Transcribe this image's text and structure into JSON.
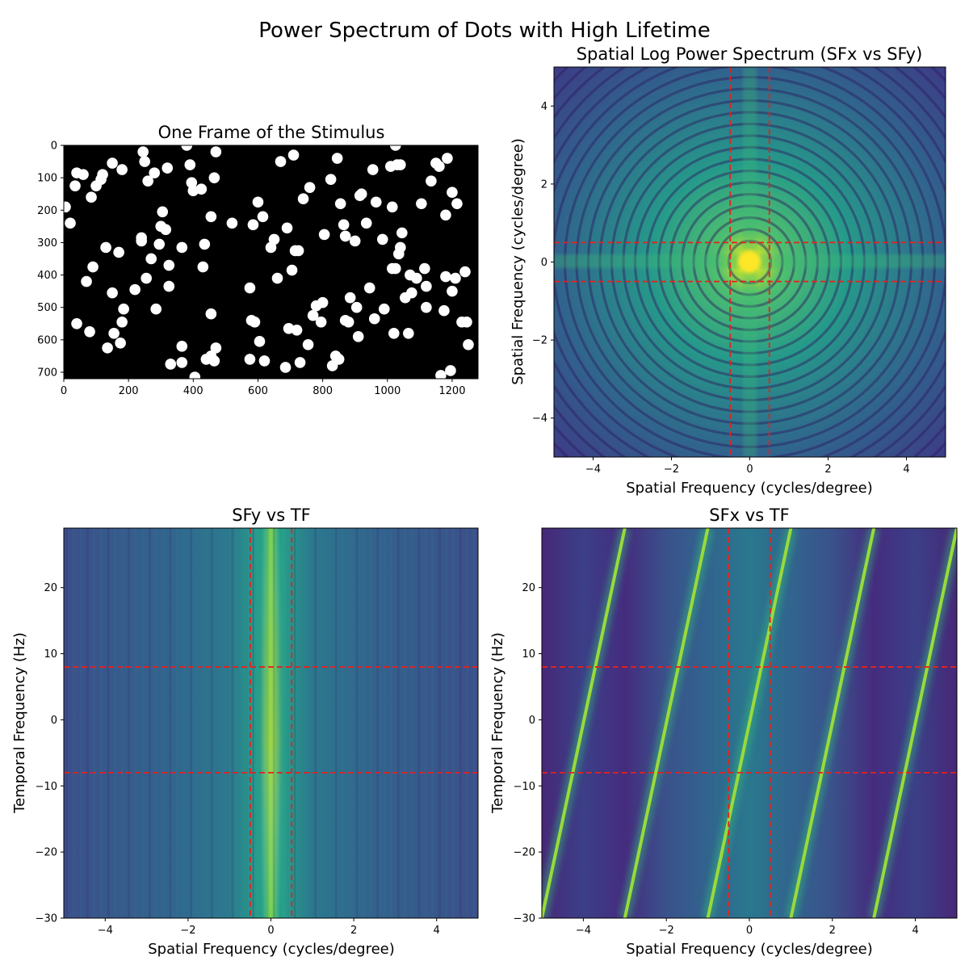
{
  "figure": {
    "title": "Power Spectrum of Dots with High Lifetime"
  },
  "chart_data": [
    {
      "type": "scatter",
      "title": "One Frame of the Stimulus",
      "xlabel": "",
      "ylabel": "",
      "xlim": [
        0,
        1280
      ],
      "ylim": [
        720,
        0
      ],
      "xticks": [
        0,
        200,
        400,
        600,
        800,
        1000,
        1200
      ],
      "yticks": [
        0,
        100,
        200,
        300,
        400,
        500,
        600,
        700
      ],
      "background": "#000000",
      "dot_color": "#ffffff",
      "points": [
        [
          5,
          190
        ],
        [
          20,
          240
        ],
        [
          35,
          125
        ],
        [
          40,
          85
        ],
        [
          40,
          550
        ],
        [
          60,
          90
        ],
        [
          70,
          420
        ],
        [
          80,
          575
        ],
        [
          85,
          160
        ],
        [
          90,
          375
        ],
        [
          100,
          125
        ],
        [
          115,
          105
        ],
        [
          120,
          90
        ],
        [
          130,
          315
        ],
        [
          135,
          625
        ],
        [
          150,
          55
        ],
        [
          150,
          455
        ],
        [
          155,
          580
        ],
        [
          170,
          330
        ],
        [
          175,
          610
        ],
        [
          180,
          75
        ],
        [
          180,
          545
        ],
        [
          185,
          505
        ],
        [
          220,
          445
        ],
        [
          240,
          295
        ],
        [
          240,
          285
        ],
        [
          245,
          20
        ],
        [
          250,
          50
        ],
        [
          255,
          410
        ],
        [
          260,
          110
        ],
        [
          270,
          350
        ],
        [
          280,
          85
        ],
        [
          285,
          505
        ],
        [
          295,
          305
        ],
        [
          300,
          250
        ],
        [
          305,
          205
        ],
        [
          315,
          260
        ],
        [
          320,
          70
        ],
        [
          325,
          435
        ],
        [
          325,
          370
        ],
        [
          330,
          675
        ],
        [
          365,
          315
        ],
        [
          365,
          620
        ],
        [
          365,
          670
        ],
        [
          380,
          0
        ],
        [
          390,
          60
        ],
        [
          395,
          115
        ],
        [
          400,
          140
        ],
        [
          405,
          715
        ],
        [
          425,
          135
        ],
        [
          430,
          375
        ],
        [
          435,
          305
        ],
        [
          440,
          660
        ],
        [
          455,
          520
        ],
        [
          455,
          650
        ],
        [
          455,
          220
        ],
        [
          465,
          100
        ],
        [
          465,
          665
        ],
        [
          470,
          20
        ],
        [
          470,
          625
        ],
        [
          520,
          240
        ],
        [
          575,
          660
        ],
        [
          575,
          440
        ],
        [
          580,
          540
        ],
        [
          585,
          245
        ],
        [
          590,
          545
        ],
        [
          600,
          175
        ],
        [
          605,
          605
        ],
        [
          615,
          220
        ],
        [
          620,
          665
        ],
        [
          640,
          315
        ],
        [
          650,
          290
        ],
        [
          660,
          410
        ],
        [
          670,
          50
        ],
        [
          685,
          685
        ],
        [
          690,
          255
        ],
        [
          695,
          565
        ],
        [
          705,
          385
        ],
        [
          710,
          30
        ],
        [
          715,
          325
        ],
        [
          720,
          570
        ],
        [
          725,
          325
        ],
        [
          730,
          670
        ],
        [
          740,
          165
        ],
        [
          755,
          615
        ],
        [
          760,
          130
        ],
        [
          770,
          525
        ],
        [
          780,
          495
        ],
        [
          795,
          545
        ],
        [
          800,
          485
        ],
        [
          805,
          275
        ],
        [
          825,
          105
        ],
        [
          830,
          680
        ],
        [
          840,
          650
        ],
        [
          845,
          40
        ],
        [
          850,
          660
        ],
        [
          855,
          180
        ],
        [
          865,
          245
        ],
        [
          870,
          280
        ],
        [
          870,
          540
        ],
        [
          880,
          545
        ],
        [
          885,
          470
        ],
        [
          900,
          295
        ],
        [
          905,
          500
        ],
        [
          910,
          590
        ],
        [
          915,
          155
        ],
        [
          920,
          150
        ],
        [
          935,
          240
        ],
        [
          945,
          440
        ],
        [
          955,
          75
        ],
        [
          960,
          535
        ],
        [
          965,
          175
        ],
        [
          985,
          290
        ],
        [
          990,
          505
        ],
        [
          1010,
          65
        ],
        [
          1015,
          190
        ],
        [
          1015,
          380
        ],
        [
          1020,
          580
        ],
        [
          1025,
          0
        ],
        [
          1025,
          380
        ],
        [
          1030,
          60
        ],
        [
          1035,
          335
        ],
        [
          1040,
          60
        ],
        [
          1040,
          315
        ],
        [
          1045,
          270
        ],
        [
          1055,
          470
        ],
        [
          1065,
          580
        ],
        [
          1070,
          400
        ],
        [
          1075,
          455
        ],
        [
          1090,
          410
        ],
        [
          1105,
          180
        ],
        [
          1115,
          380
        ],
        [
          1120,
          435
        ],
        [
          1120,
          500
        ],
        [
          1135,
          110
        ],
        [
          1150,
          55
        ],
        [
          1160,
          65
        ],
        [
          1165,
          710
        ],
        [
          1175,
          510
        ],
        [
          1180,
          405
        ],
        [
          1180,
          215
        ],
        [
          1185,
          40
        ],
        [
          1195,
          695
        ],
        [
          1200,
          145
        ],
        [
          1200,
          450
        ],
        [
          1210,
          410
        ],
        [
          1215,
          180
        ],
        [
          1230,
          545
        ],
        [
          1240,
          390
        ],
        [
          1245,
          545
        ],
        [
          1250,
          615
        ]
      ]
    },
    {
      "type": "heatmap",
      "title": "Spatial Log Power Spectrum (SFx vs SFy)",
      "xlabel": "Spatial Frequency (cycles/degree)",
      "ylabel": "Spatial Frequency (cycles/degree)",
      "xlim": [
        -5,
        5
      ],
      "ylim": [
        -5,
        5
      ],
      "xticks": [
        -4,
        -2,
        0,
        2,
        4
      ],
      "yticks": [
        -4,
        -2,
        0,
        2,
        4
      ],
      "colormap": "viridis",
      "reference_lines": {
        "x": [
          -0.5,
          0.5
        ],
        "y": [
          -0.5,
          0.5
        ],
        "color": "#e8201c",
        "style": "dashed"
      }
    },
    {
      "type": "heatmap",
      "title": "SFy vs TF",
      "xlabel": "Spatial Frequency (cycles/degree)",
      "ylabel": "Temporal Frequency (Hz)",
      "xlim": [
        -5,
        5
      ],
      "ylim": [
        -30,
        29
      ],
      "xticks": [
        -4,
        -2,
        0,
        2,
        4
      ],
      "yticks": [
        -30,
        -20,
        -10,
        0,
        10,
        20
      ],
      "colormap": "viridis",
      "reference_lines": {
        "x": [
          -0.5,
          0.5
        ],
        "y": [
          -8,
          8
        ],
        "color": "#e8201c",
        "style": "dashed"
      }
    },
    {
      "type": "heatmap",
      "title": "SFx vs TF",
      "xlabel": "Spatial Frequency (cycles/degree)",
      "ylabel": "Temporal Frequency (Hz)",
      "xlim": [
        -5,
        5
      ],
      "ylim": [
        -30,
        29
      ],
      "xticks": [
        -4,
        -2,
        0,
        2,
        4
      ],
      "yticks": [
        -30,
        -20,
        -10,
        0,
        10,
        20
      ],
      "colormap": "viridis",
      "reference_lines": {
        "x": [
          -0.5,
          0.5
        ],
        "y": [
          -8,
          8
        ],
        "color": "#e8201c",
        "style": "dashed"
      },
      "ridges": [
        {
          "x_at_tf_min": -5.0,
          "x_at_tf_max": -3.0
        },
        {
          "x_at_tf_min": -3.0,
          "x_at_tf_max": -1.0
        },
        {
          "x_at_tf_min": -1.0,
          "x_at_tf_max": 1.0
        },
        {
          "x_at_tf_min": 1.0,
          "x_at_tf_max": 3.0
        },
        {
          "x_at_tf_min": 3.0,
          "x_at_tf_max": 5.0
        }
      ]
    }
  ]
}
